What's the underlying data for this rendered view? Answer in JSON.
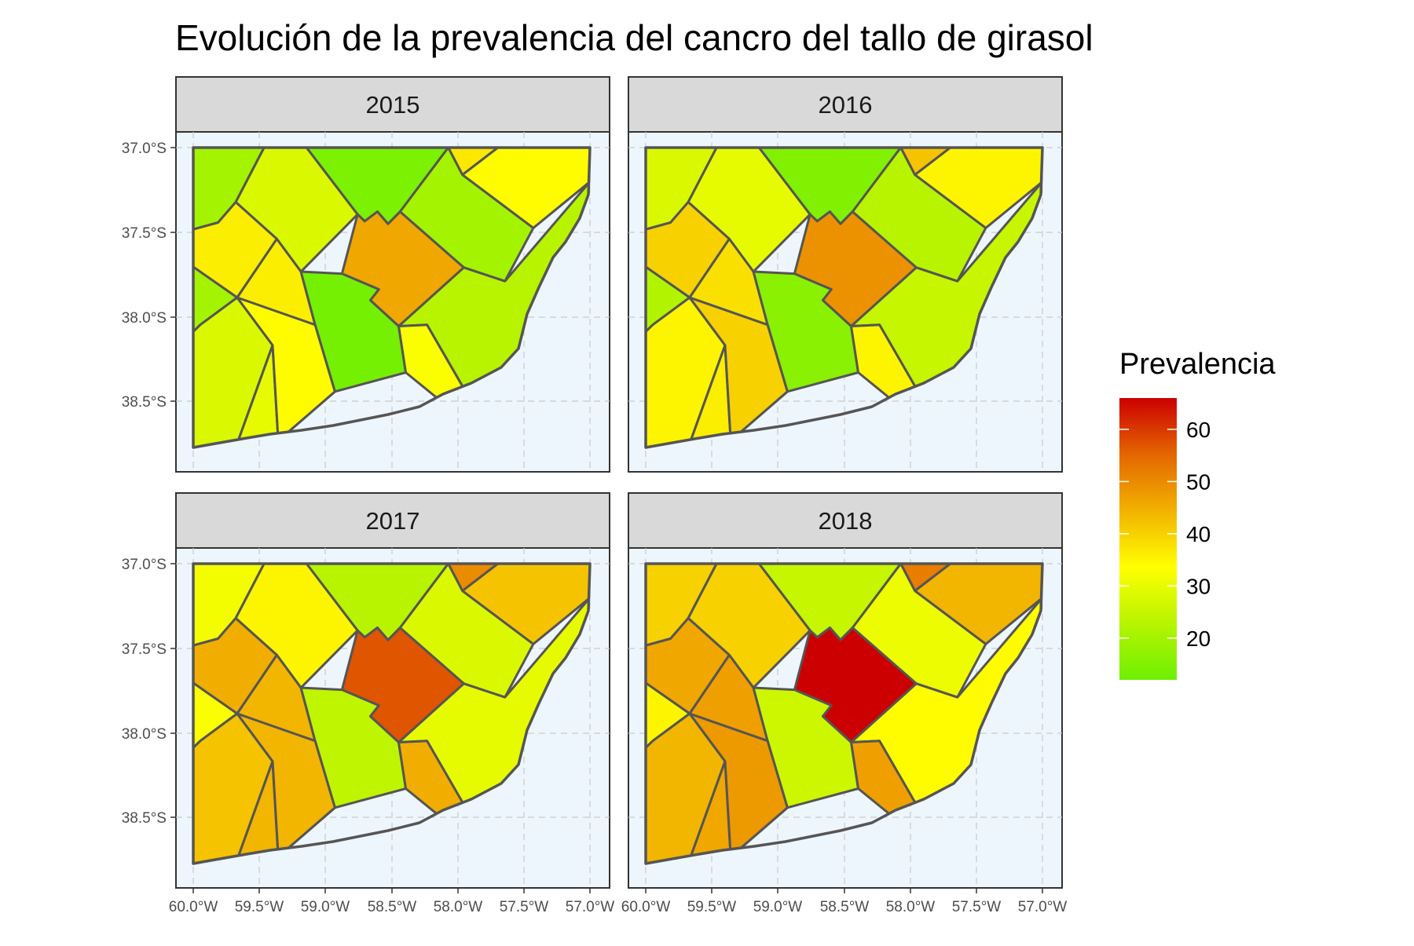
{
  "title": "Evolución de la prevalencia del cancro del tallo de girasol",
  "colors": {
    "sea": "#eef6fd",
    "strip": "#d9d9d9",
    "border": "#555555",
    "grid": "#c9c9c9",
    "scale": [
      "#6ef002",
      "#b7f400",
      "#ffff00",
      "#f2b200",
      "#e46600",
      "#cc0000"
    ]
  },
  "legend": {
    "title": "Prevalencia",
    "min": 12,
    "max": 66,
    "ticks": [
      "20",
      "30",
      "40",
      "50",
      "60"
    ]
  },
  "axes": {
    "y_ticks": [
      "37.0°S",
      "37.5°S",
      "38.0°S",
      "38.5°S"
    ],
    "x_ticks": [
      "60.0°W",
      "59.5°W",
      "59.0°W",
      "58.5°W",
      "58.0°W",
      "57.5°W",
      "57.0°W"
    ]
  },
  "panels": [
    {
      "label": "2015",
      "values": {
        "nw": 20,
        "ncw": 28,
        "nc": 14,
        "ne1": 37,
        "ne2": 34,
        "w1": 36,
        "mid": 46,
        "ec": 20,
        "cw": 36,
        "c2": 13,
        "e2": 23,
        "swa": 20,
        "sw": 28,
        "s1": 30,
        "s2": 34,
        "s3": 33
      }
    },
    {
      "label": "2016",
      "values": {
        "nw": 28,
        "ncw": 30,
        "nc": 15,
        "ne1": 42,
        "ne2": 35,
        "w1": 40,
        "mid": 49,
        "ec": 23,
        "cw": 38,
        "c2": 16,
        "e2": 25,
        "swa": 22,
        "sw": 35,
        "s1": 36,
        "s2": 40,
        "s3": 35
      }
    },
    {
      "label": "2017",
      "values": {
        "nw": 32,
        "ncw": 35,
        "nc": 23,
        "ne1": 50,
        "ne2": 42,
        "w1": 45,
        "mid": 57,
        "ec": 28,
        "cw": 44,
        "c2": 24,
        "e2": 30,
        "swa": 33,
        "sw": 42,
        "s1": 44,
        "s2": 44,
        "s3": 45
      }
    },
    {
      "label": "2018",
      "values": {
        "nw": 40,
        "ncw": 40,
        "nc": 25,
        "ne1": 52,
        "ne2": 44,
        "w1": 46,
        "mid": 66,
        "ec": 31,
        "cw": 47,
        "c2": 26,
        "e2": 34,
        "swa": 35,
        "sw": 44,
        "s1": 46,
        "s2": 48,
        "s3": 47
      }
    }
  ]
}
